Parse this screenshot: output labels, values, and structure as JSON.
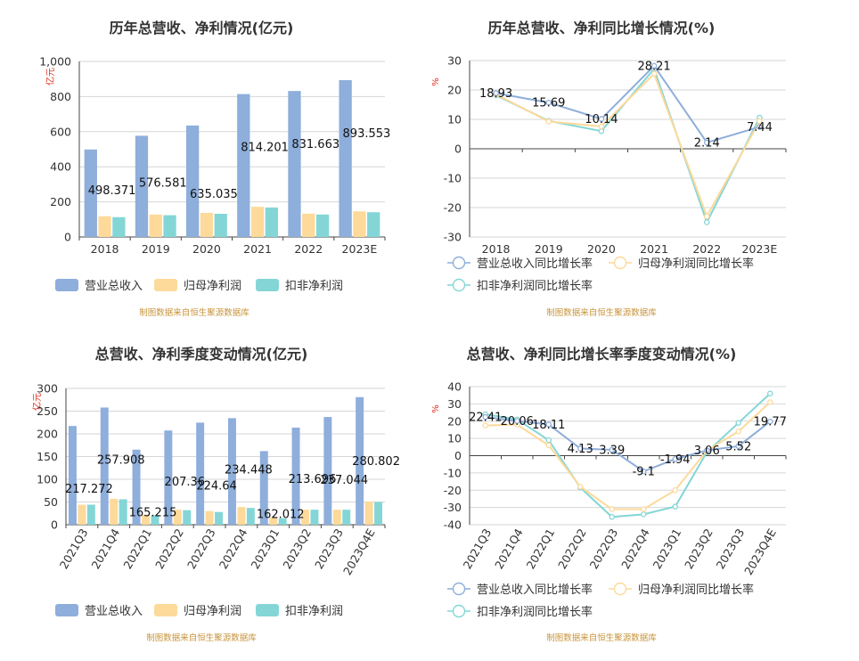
{
  "source_note": "制图数据来自恒生聚源数据库",
  "chart_data": [
    {
      "type": "bar",
      "title": "历年总营收、净利情况(亿元)",
      "ylabel": "亿元",
      "categories": [
        "2018",
        "2019",
        "2020",
        "2021",
        "2022",
        "2023E"
      ],
      "ylim": [
        0,
        1000
      ],
      "yticks": [
        "0",
        "200",
        "400",
        "600",
        "800",
        "1,000"
      ],
      "yticks_values": [
        0,
        200,
        400,
        600,
        800,
        1000
      ],
      "series": [
        {
          "name": "营业总收入",
          "color": "#8eaedb",
          "values": [
            498.371,
            576.581,
            635.035,
            814.201,
            831.663,
            893.553
          ],
          "labels": [
            "498.371",
            "576.581",
            "635.035",
            "814.201",
            "831.663",
            "893.553"
          ]
        },
        {
          "name": "归母净利润",
          "color": "#fdd99a",
          "values": [
            118,
            128,
            137,
            172,
            133,
            146
          ]
        },
        {
          "name": "扣非净利润",
          "color": "#84d6d6",
          "values": [
            113,
            124,
            132,
            168,
            128,
            141
          ]
        }
      ],
      "grid": true,
      "legend": "bottom"
    },
    {
      "type": "line",
      "title": "历年总营收、净利同比增长情况(%)",
      "ylabel": "%",
      "categories": [
        "2018",
        "2019",
        "2020",
        "2021",
        "2022",
        "2023E"
      ],
      "ylim": [
        -30,
        30
      ],
      "yticks": [
        "-30",
        "-20",
        "-10",
        "0",
        "10",
        "20",
        "30"
      ],
      "yticks_values": [
        -30,
        -20,
        -10,
        0,
        10,
        20,
        30
      ],
      "series": [
        {
          "name": "营业总收入同比增长率",
          "color": "#8eaedb",
          "values": [
            18.93,
            15.69,
            10.14,
            28.21,
            2.14,
            7.44
          ],
          "labels": [
            "18.93",
            "15.69",
            "10.14",
            "28.21",
            "2.14",
            "7.44"
          ]
        },
        {
          "name": "归母净利润同比增长率",
          "color": "#fdd99a",
          "values": [
            18.5,
            9.3,
            7.6,
            25.5,
            -23.0,
            9.4
          ]
        },
        {
          "name": "扣非净利润同比增长率",
          "color": "#84d6d6",
          "values": [
            18.2,
            9.5,
            6.0,
            27.2,
            -25.0,
            10.6
          ]
        }
      ],
      "grid": true,
      "legend": "bottom"
    },
    {
      "type": "bar",
      "title": "总营收、净利季度变动情况(亿元)",
      "ylabel": "亿元",
      "categories": [
        "2021Q3",
        "2021Q4",
        "2022Q1",
        "2022Q2",
        "2022Q3",
        "2022Q4",
        "2023Q1",
        "2023Q2",
        "2023Q3",
        "2023Q4E"
      ],
      "ylim": [
        0,
        300
      ],
      "yticks": [
        "0",
        "50",
        "100",
        "150",
        "200",
        "250",
        "300"
      ],
      "yticks_values": [
        0,
        50,
        100,
        150,
        200,
        250,
        300
      ],
      "series": [
        {
          "name": "营业总收入",
          "color": "#8eaedb",
          "values": [
            217.272,
            257.908,
            165.215,
            207.36,
            224.64,
            234.448,
            162.012,
            213.696,
            237.044,
            280.802
          ],
          "labels": [
            "217.272",
            "257.908",
            "165.215",
            "207.36",
            "224.64",
            "234.448",
            "162.012",
            "213.696",
            "237.044",
            "280.802"
          ]
        },
        {
          "name": "归母净利润",
          "color": "#fdd99a",
          "values": [
            44,
            57,
            22,
            33,
            30,
            39,
            16,
            33,
            33,
            51
          ]
        },
        {
          "name": "扣非净利润",
          "color": "#84d6d6",
          "values": [
            44,
            56,
            21,
            32,
            28,
            37,
            14,
            33,
            33,
            50
          ]
        }
      ],
      "grid": true,
      "legend": "bottom"
    },
    {
      "type": "line",
      "title": "总营收、净利同比增长率季度变动情况(%)",
      "ylabel": "%",
      "categories": [
        "2021Q3",
        "2021Q4",
        "2022Q1",
        "2022Q2",
        "2022Q3",
        "2022Q4",
        "2023Q1",
        "2023Q2",
        "2023Q3",
        "2023Q4E"
      ],
      "ylim": [
        -40,
        40
      ],
      "yticks": [
        "-40",
        "-30",
        "-20",
        "-10",
        "0",
        "10",
        "20",
        "30",
        "40"
      ],
      "yticks_values": [
        -40,
        -30,
        -20,
        -10,
        0,
        10,
        20,
        30,
        40
      ],
      "series": [
        {
          "name": "营业总收入同比增长率",
          "color": "#8eaedb",
          "values": [
            22.41,
            20.06,
            18.11,
            4.13,
            3.39,
            -9.1,
            -1.94,
            3.06,
            5.52,
            19.77
          ],
          "labels": [
            "22.41",
            "20.06",
            "18.11",
            "4.13",
            "3.39",
            "-9.1",
            "-1.94",
            "3.06",
            "5.52",
            "19.77"
          ]
        },
        {
          "name": "归母净利润同比增长率",
          "color": "#fdd99a",
          "values": [
            17.5,
            18.0,
            6.0,
            -18.0,
            -31.0,
            -31.0,
            -20.0,
            3.0,
            14.0,
            31.0
          ]
        },
        {
          "name": "扣非净利润同比增长率",
          "color": "#84d6d6",
          "values": [
            24.0,
            21.0,
            9.0,
            -18.5,
            -35.5,
            -34.0,
            -29.5,
            2.0,
            19.0,
            36.0
          ]
        }
      ],
      "grid": true,
      "legend": "bottom"
    }
  ]
}
